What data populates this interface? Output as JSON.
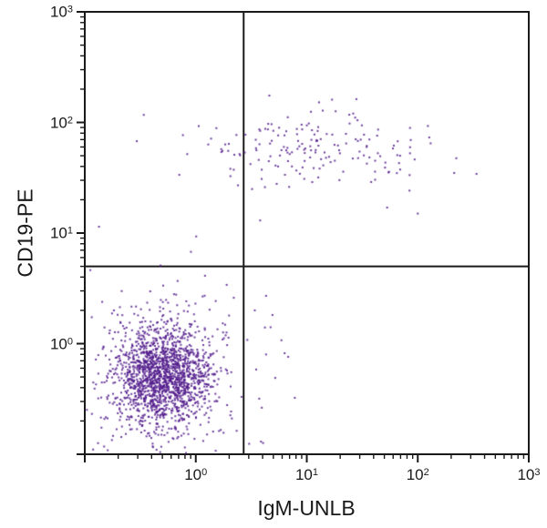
{
  "figure": {
    "background": "#ffffff",
    "axis_color": "#1a1a1a",
    "dot_color": "#521c8c",
    "dot_alpha": 0.85,
    "random_seed": 42
  },
  "chart_data": {
    "type": "scatter",
    "title": "",
    "xlabel": "IgM-UNLB",
    "ylabel": "CD19-PE",
    "x_scale": "log",
    "y_scale": "log",
    "xlim": [
      0.1,
      1000
    ],
    "ylim": [
      0.1,
      1000
    ],
    "grid": false,
    "legend": "none",
    "x_ticks": [
      {
        "value": 1,
        "mantissa": "10",
        "exponent": "0"
      },
      {
        "value": 10,
        "mantissa": "10",
        "exponent": "1"
      },
      {
        "value": 100,
        "mantissa": "10",
        "exponent": "2"
      },
      {
        "value": 1000,
        "mantissa": "10",
        "exponent": "3"
      }
    ],
    "y_ticks": [
      {
        "value": 1,
        "mantissa": "10",
        "exponent": "0"
      },
      {
        "value": 10,
        "mantissa": "10",
        "exponent": "1"
      },
      {
        "value": 100,
        "mantissa": "10",
        "exponent": "2"
      },
      {
        "value": 1000,
        "mantissa": "10",
        "exponent": "3"
      }
    ],
    "minor_tick_multipliers": [
      2,
      3,
      4,
      5,
      6,
      7,
      8,
      9
    ],
    "quadrant_gates": {
      "x_value": 2.7,
      "y_value": 5.0
    },
    "populations": [
      {
        "name": "cd19neg-igmneg-lymphocytes",
        "description": "dense double-negative cluster, lower-left quadrant",
        "components": [
          {
            "count": 1500,
            "center_log10": {
              "x": -0.3,
              "y": -0.29
            },
            "sigma_log10": {
              "x": 0.21,
              "y": 0.22
            }
          },
          {
            "count": 330,
            "center_log10": {
              "x": -0.3,
              "y": -0.28
            },
            "sigma_log10": {
              "x": 0.42,
              "y": 0.45
            }
          }
        ]
      },
      {
        "name": "cd19pos-b-cells",
        "description": "CD19+ B-cell band, upper quadrants",
        "components": [
          {
            "count": 175,
            "center_log10": {
              "x": 1.05,
              "y": 1.75
            },
            "sigma_log10": {
              "x": 0.52,
              "y": 0.16
            }
          }
        ]
      }
    ],
    "outlier_points": [
      [
        0.34,
        117
      ],
      [
        4.6,
        175
      ],
      [
        2.4,
        27
      ],
      [
        4.2,
        26
      ],
      [
        3.8,
        13
      ],
      [
        53,
        17
      ],
      [
        100,
        15
      ],
      [
        3.4,
        2.0
      ],
      [
        4.2,
        1.4
      ],
      [
        5.2,
        0.49
      ],
      [
        6.8,
        0.76
      ],
      [
        1.9,
        3.4
      ],
      [
        2.2,
        2.6
      ]
    ]
  }
}
